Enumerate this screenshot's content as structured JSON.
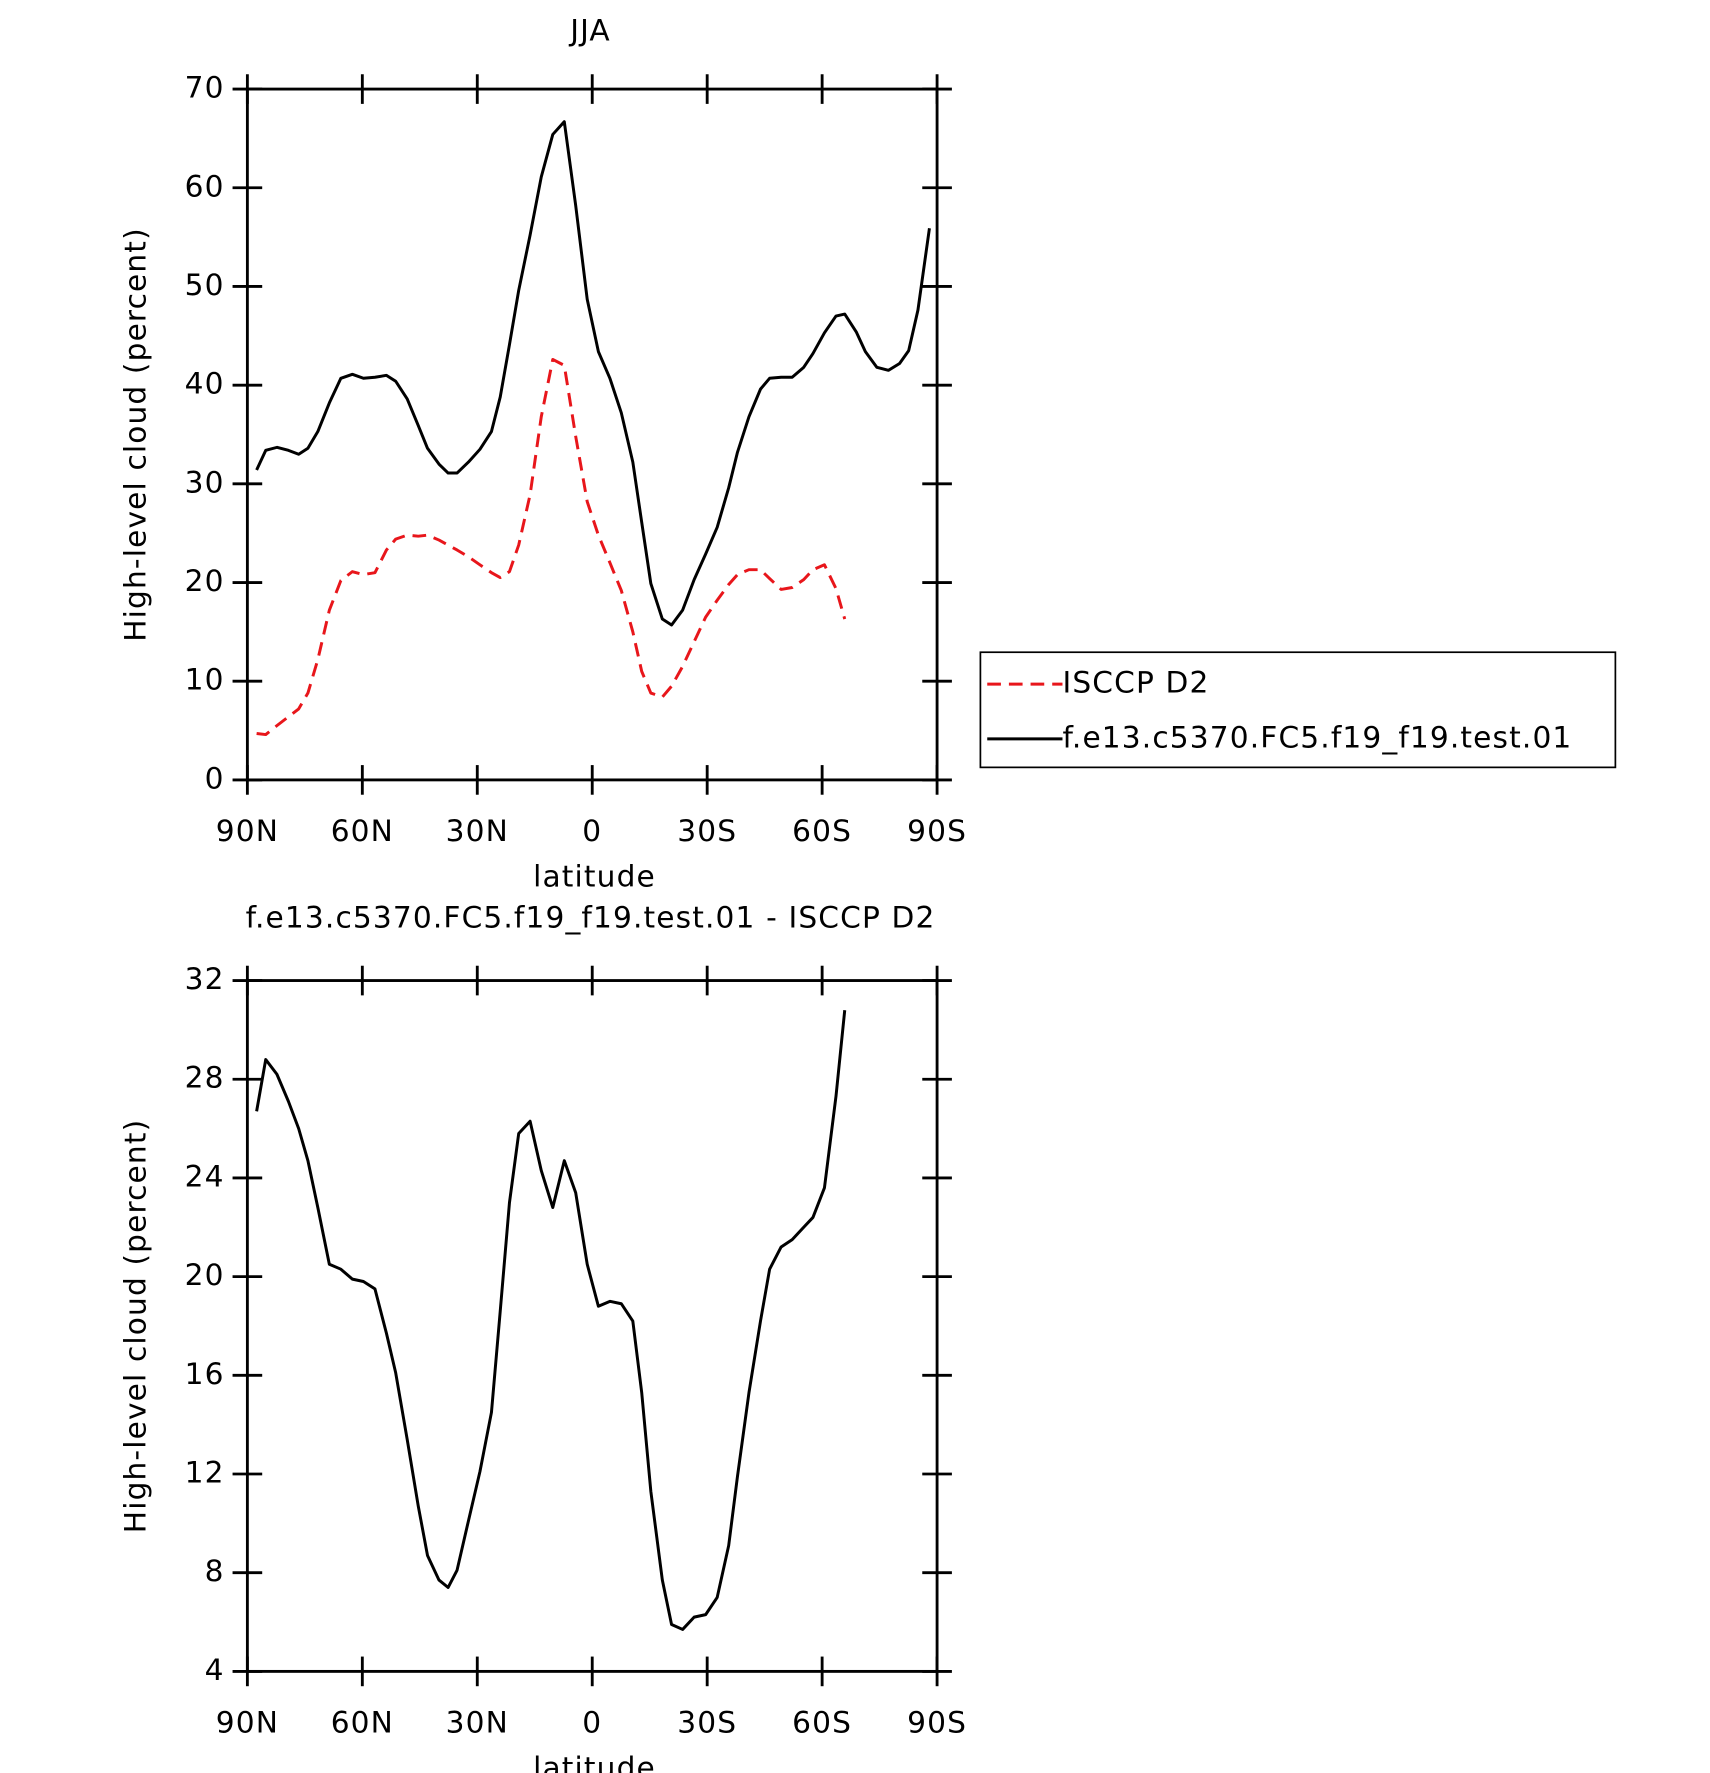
{
  "chart_data": [
    {
      "type": "line",
      "title": "JJA",
      "xlabel": "latitude",
      "ylabel": "High-level cloud (percent)",
      "x": [
        87.6,
        85.2,
        82.3,
        79.3,
        76.6,
        74.2,
        71.6,
        68.6,
        65.6,
        62.6,
        59.7,
        56.7,
        53.7,
        51.3,
        48.3,
        45.4,
        43.0,
        40.0,
        37.6,
        35.3,
        32.3,
        29.3,
        26.3,
        24.0,
        21.6,
        19.2,
        16.2,
        13.3,
        10.3,
        7.3,
        4.3,
        1.3,
        -1.6,
        -4.6,
        -7.6,
        -10.6,
        -12.9,
        -15.3,
        -18.3,
        -20.7,
        -23.6,
        -26.6,
        -29.6,
        -32.6,
        -35.6,
        -37.9,
        -40.9,
        -43.9,
        -46.3,
        -49.3,
        -52.2,
        -55.2,
        -57.6,
        -60.6,
        -63.6,
        -65.9,
        -68.9,
        -71.3,
        -74.3,
        -77.3,
        -80.2,
        -82.6,
        -85.0,
        -88.0
      ],
      "series": [
        {
          "name": "ISCCP D2",
          "color": "#e8161b",
          "style": "dashed",
          "values": [
            4.7,
            4.6,
            5.5,
            6.4,
            7.2,
            8.8,
            12.2,
            17.2,
            20.2,
            21.1,
            20.8,
            21.0,
            23.3,
            24.4,
            24.8,
            24.7,
            24.8,
            24.3,
            23.8,
            23.3,
            22.6,
            21.8,
            21.0,
            20.5,
            21.1,
            23.8,
            28.9,
            36.8,
            42.6,
            42.0,
            34.8,
            28.2,
            24.8,
            22.0,
            19.2,
            15.0,
            11.0,
            8.8,
            8.4,
            9.5,
            11.5,
            14.0,
            16.5,
            18.2,
            19.8,
            20.8,
            21.3,
            21.3,
            20.4,
            19.3,
            19.5,
            20.3,
            21.3,
            21.8,
            19.4,
            16.3,
            null,
            null,
            null,
            null,
            null,
            null,
            null,
            null
          ]
        },
        {
          "name": "f.e13.c5370.FC5.f19_f19.test.01",
          "color": "#000000",
          "style": "solid",
          "values": [
            31.4,
            33.4,
            33.7,
            33.4,
            33.0,
            33.6,
            35.3,
            38.2,
            40.7,
            41.1,
            40.7,
            40.8,
            41.0,
            40.4,
            38.6,
            35.9,
            33.6,
            32.0,
            31.1,
            31.1,
            32.2,
            33.5,
            35.3,
            38.8,
            44.1,
            49.6,
            55.2,
            61.1,
            65.4,
            66.7,
            58.2,
            48.7,
            43.4,
            40.7,
            37.2,
            32.2,
            26.1,
            19.9,
            16.3,
            15.7,
            17.2,
            20.3,
            22.9,
            25.6,
            29.6,
            33.2,
            36.8,
            39.6,
            40.7,
            40.8,
            40.8,
            41.8,
            43.2,
            45.3,
            47.0,
            47.2,
            45.4,
            43.4,
            41.8,
            41.5,
            42.2,
            43.5,
            47.6,
            55.9
          ]
        }
      ],
      "xlim": [
        90,
        -90
      ],
      "xticks": [
        {
          "value": 90,
          "label": "90N"
        },
        {
          "value": 60,
          "label": "60N"
        },
        {
          "value": 30,
          "label": "30N"
        },
        0,
        {
          "value": -30,
          "label": "30S"
        },
        {
          "value": -60,
          "label": "60S"
        },
        {
          "value": -90,
          "label": "90S"
        }
      ],
      "ylim": [
        0,
        70
      ],
      "yticks": [
        0,
        10,
        20,
        30,
        40,
        50,
        60,
        70
      ],
      "legend": "right"
    },
    {
      "type": "line",
      "title": "f.e13.c5370.FC5.f19_f19.test.01 - ISCCP D2",
      "xlabel": "latitude",
      "ylabel": "High-level cloud (percent)",
      "x": [
        87.6,
        85.2,
        82.3,
        79.3,
        76.6,
        74.2,
        71.6,
        68.6,
        65.6,
        62.6,
        59.7,
        56.7,
        53.7,
        51.3,
        48.3,
        45.4,
        43.0,
        40.0,
        37.6,
        35.3,
        32.3,
        29.3,
        26.3,
        24.0,
        21.6,
        19.2,
        16.2,
        13.3,
        10.3,
        7.3,
        4.3,
        1.3,
        -1.6,
        -4.6,
        -7.6,
        -10.6,
        -12.9,
        -15.3,
        -18.3,
        -20.7,
        -23.6,
        -26.6,
        -29.6,
        -32.6,
        -35.6,
        -37.9,
        -40.9,
        -43.9,
        -46.3,
        -49.3,
        -52.2,
        -55.2,
        -57.6,
        -60.6,
        -63.6,
        -65.9,
        -68.9,
        -71.3,
        -74.3,
        -77.3,
        -80.2,
        -82.6,
        -85.0,
        -88.0
      ],
      "series": [
        {
          "color": "#000000",
          "style": "solid",
          "values": [
            26.7,
            28.8,
            28.2,
            27.1,
            26.0,
            24.7,
            22.8,
            20.5,
            20.3,
            19.9,
            19.8,
            19.5,
            17.7,
            16.1,
            13.4,
            10.7,
            8.7,
            7.7,
            7.4,
            8.1,
            10.1,
            12.1,
            14.5,
            18.6,
            23.0,
            25.8,
            26.3,
            24.3,
            22.8,
            24.7,
            23.4,
            20.5,
            18.8,
            19.0,
            18.9,
            18.2,
            15.3,
            11.3,
            7.7,
            5.9,
            5.7,
            6.2,
            6.3,
            7.0,
            9.1,
            11.9,
            15.3,
            18.2,
            20.3,
            21.2,
            21.5,
            22.0,
            22.4,
            23.6,
            27.3,
            30.8,
            null,
            null,
            null,
            null,
            null,
            null,
            null,
            null
          ]
        }
      ],
      "xlim": [
        90,
        -90
      ],
      "xticks": [
        {
          "value": 90,
          "label": "90N"
        },
        {
          "value": 60,
          "label": "60N"
        },
        {
          "value": 30,
          "label": "30N"
        },
        0,
        {
          "value": -30,
          "label": "30S"
        },
        {
          "value": -60,
          "label": "60S"
        },
        {
          "value": -90,
          "label": "90S"
        }
      ],
      "ylim": [
        4,
        32
      ],
      "yticks": [
        4,
        8,
        12,
        16,
        20,
        24,
        28,
        32
      ]
    }
  ]
}
